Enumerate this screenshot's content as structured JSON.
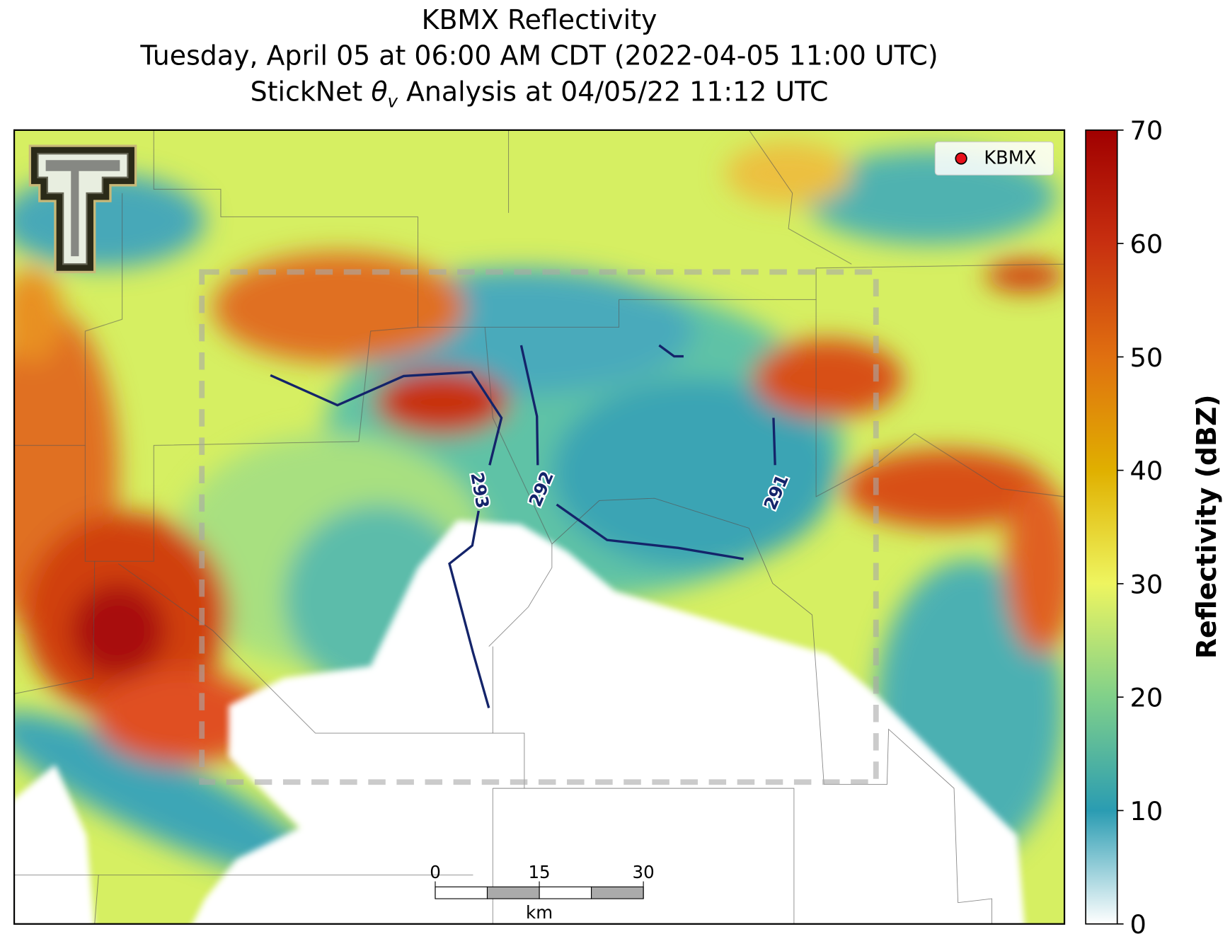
{
  "title": {
    "line1": "KBMX Reflectivity",
    "line2": "Tuesday, April 05 at 06:00 AM CDT (2022-04-05 11:00 UTC)",
    "line3": {
      "prefix": "StickNet ",
      "symbol": "θ",
      "subscript": "v",
      "suffix": " Analysis at 04/05/22 11:12 UTC"
    }
  },
  "legend": {
    "label": "KBMX",
    "marker_color": "#e8101a"
  },
  "contours": {
    "levels": [
      293,
      292,
      291
    ],
    "color": "#14246a"
  },
  "colorbar": {
    "label": "Reflectivity (dBZ)",
    "lim": [
      0,
      70
    ],
    "ticks": [
      0,
      10,
      20,
      30,
      40,
      50,
      60,
      70
    ]
  },
  "scalebar": {
    "ticks": [
      0,
      15,
      30
    ],
    "lim": [
      0,
      30
    ],
    "unit": "km"
  }
}
